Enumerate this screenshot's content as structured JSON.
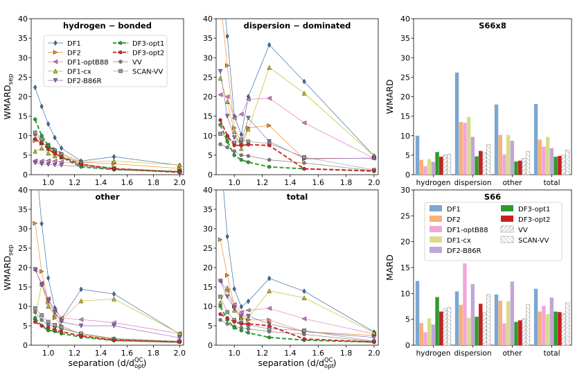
{
  "line_series": [
    {
      "name": "DF1",
      "color": "#3a6fa5",
      "marker": "diamond",
      "dash": "solid",
      "lw": 0.7
    },
    {
      "name": "DF2",
      "color": "#f28c28",
      "marker": "tri-right",
      "dash": "solid",
      "lw": 0.7
    },
    {
      "name": "DF1-optB88",
      "color": "#e377c2",
      "marker": "tri-left",
      "dash": "solid",
      "lw": 0.7
    },
    {
      "name": "DF1-cx",
      "color": "#bcbd22",
      "marker": "tri-up",
      "dash": "solid",
      "lw": 0.7
    },
    {
      "name": "DF2-B86R",
      "color": "#9467bd",
      "marker": "tri-down",
      "dash": "solid",
      "lw": 0.7
    },
    {
      "name": "DF3-opt1",
      "color": "#2ca02c",
      "marker": "circle",
      "dash": "dash",
      "lw": 2.0
    },
    {
      "name": "DF3-opt2",
      "color": "#d62728",
      "marker": "circle",
      "dash": "dash",
      "lw": 2.0
    },
    {
      "name": "VV",
      "color": "#7f7f7f",
      "marker": "circle",
      "dash": "solid",
      "lw": 0.7
    },
    {
      "name": "SCAN-VV",
      "color": "#9a9a9a",
      "marker": "square",
      "dash": "solid",
      "lw": 0.7
    }
  ],
  "bar_series": [
    {
      "name": "DF1",
      "color": "#7ba7d0",
      "hatch": false
    },
    {
      "name": "DF2",
      "color": "#f7b07a",
      "hatch": false
    },
    {
      "name": "DF1-optB88",
      "color": "#f2a6d8",
      "hatch": false
    },
    {
      "name": "DF1-cx",
      "color": "#d8dc8a",
      "hatch": false
    },
    {
      "name": "DF2-B86R",
      "color": "#c2a6d6",
      "hatch": false
    },
    {
      "name": "DF3-opt1",
      "color": "#2e9a2e",
      "hatch": false
    },
    {
      "name": "DF3-opt2",
      "color": "#c82020",
      "hatch": false
    },
    {
      "name": "VV",
      "color": "#ffffff",
      "hatch": true
    },
    {
      "name": "SCAN-VV",
      "color": "#ffffff",
      "hatch": true
    }
  ],
  "chart_data": [
    {
      "type": "line",
      "title": "hydrogen − bonded",
      "ylabel": "WMARD",
      "ylabel_sub": "sep",
      "xlabel": "",
      "ylim": [
        0,
        40
      ],
      "xlim": [
        0.87,
        2.03
      ],
      "xticks": [
        "1.0",
        "1.2",
        "1.4",
        "1.6",
        "1.8",
        "2.0"
      ],
      "xtick_values": [
        1.0,
        1.2,
        1.4,
        1.6,
        1.8,
        2.0
      ],
      "yticks": [
        "0",
        "5",
        "10",
        "15",
        "20",
        "25",
        "30",
        "35",
        "40"
      ],
      "ytick_values": [
        0,
        5,
        10,
        15,
        20,
        25,
        30,
        35,
        40
      ],
      "x": [
        0.9,
        0.95,
        1.0,
        1.05,
        1.1,
        1.25,
        1.5,
        2.0
      ],
      "values": [
        [
          22.4,
          17.5,
          13.0,
          9.5,
          6.8,
          3.5,
          4.6,
          2.4
        ],
        [
          8.7,
          8.0,
          7.5,
          6.5,
          5.5,
          3.2,
          2.8,
          1.6
        ],
        [
          3.6,
          3.5,
          3.6,
          3.5,
          3.3,
          2.6,
          1.5,
          0.8
        ],
        [
          6.0,
          6.8,
          5.5,
          4.8,
          4.5,
          3.3,
          3.5,
          2.5
        ],
        [
          3.0,
          2.7,
          2.6,
          2.5,
          2.4,
          2.1,
          1.4,
          0.8
        ],
        [
          14.2,
          10.0,
          7.5,
          5.8,
          4.5,
          2.0,
          1.3,
          0.8
        ],
        [
          9.2,
          8.0,
          6.5,
          5.4,
          4.6,
          2.6,
          1.5,
          0.6
        ],
        [
          10.3,
          8.5,
          6.7,
          5.5,
          4.5,
          2.5,
          1.3,
          0.6
        ],
        [
          10.8,
          9.2,
          7.6,
          6.2,
          5.2,
          2.8,
          1.7,
          0.8
        ]
      ],
      "legend": true
    },
    {
      "type": "line",
      "title": "dispersion − dominated",
      "ylabel": "",
      "xlabel": "",
      "ylim": [
        0,
        40
      ],
      "xlim": [
        0.87,
        2.03
      ],
      "xticks": [
        "1.0",
        "1.2",
        "1.4",
        "1.6",
        "1.8",
        "2.0"
      ],
      "xtick_values": [
        1.0,
        1.2,
        1.4,
        1.6,
        1.8,
        2.0
      ],
      "yticks": [
        "0",
        "5",
        "10",
        "15",
        "20",
        "25",
        "30",
        "35",
        "40"
      ],
      "ytick_values": [
        0,
        5,
        10,
        15,
        20,
        25,
        30,
        35,
        40
      ],
      "x": [
        0.9,
        0.95,
        1.0,
        1.05,
        1.1,
        1.25,
        1.5,
        2.0
      ],
      "values": [
        [
          55,
          35.5,
          15.0,
          10.3,
          20.0,
          33.3,
          23.9,
          4.8
        ],
        [
          45,
          28.0,
          12.0,
          8.0,
          12.0,
          12.6,
          4.0,
          4.3
        ],
        [
          20.5,
          20.0,
          14.5,
          15.5,
          19.3,
          19.6,
          13.3,
          4.2
        ],
        [
          24.7,
          18.7,
          11.0,
          6.7,
          11.7,
          27.5,
          20.9,
          4.8
        ],
        [
          26.5,
          15.0,
          9.5,
          8.3,
          14.5,
          8.5,
          4.2,
          4.2
        ],
        [
          12.8,
          8.5,
          5.0,
          3.8,
          3.2,
          2.0,
          1.5,
          0.9
        ],
        [
          14.0,
          10.0,
          7.5,
          7.5,
          7.7,
          7.5,
          1.5,
          1.0
        ],
        [
          7.8,
          7.0,
          6.0,
          5.0,
          4.8,
          3.8,
          3.0,
          1.0
        ],
        [
          10.5,
          9.5,
          8.2,
          9.0,
          8.5,
          8.0,
          4.5,
          1.2
        ]
      ],
      "legend": false
    },
    {
      "type": "line",
      "title": "other",
      "ylabel": "WMARD",
      "ylabel_sub": "sep",
      "xlabel": "separation (d/d",
      "ylim": [
        0,
        40
      ],
      "xlim": [
        0.87,
        2.03
      ],
      "xticks": [
        "1.0",
        "1.2",
        "1.4",
        "1.6",
        "1.8",
        "2.0"
      ],
      "xtick_values": [
        1.0,
        1.2,
        1.4,
        1.6,
        1.8,
        2.0
      ],
      "yticks": [
        "0",
        "5",
        "10",
        "15",
        "20",
        "25",
        "30",
        "35",
        "40"
      ],
      "ytick_values": [
        0,
        5,
        10,
        15,
        20,
        25,
        30,
        35,
        40
      ],
      "x": [
        0.9,
        0.95,
        1.0,
        1.05,
        1.1,
        1.25,
        1.5,
        2.0
      ],
      "values": [
        [
          50,
          31.3,
          17.3,
          9.6,
          6.7,
          14.4,
          13.2,
          2.9
        ],
        [
          31.4,
          19.0,
          11.0,
          7.0,
          5.0,
          2.8,
          1.5,
          1.0
        ],
        [
          19.3,
          16.0,
          12.0,
          9.0,
          7.0,
          6.6,
          5.8,
          3.0
        ],
        [
          7.0,
          15.8,
          10.0,
          8.0,
          6.5,
          11.4,
          11.9,
          3.0
        ],
        [
          19.5,
          15.5,
          11.5,
          8.5,
          6.0,
          5.0,
          5.0,
          1.9
        ],
        [
          7.0,
          5.0,
          3.8,
          3.6,
          3.0,
          2.1,
          1.2,
          0.8
        ],
        [
          6.0,
          5.0,
          4.5,
          4.0,
          3.5,
          2.4,
          1.3,
          0.8
        ],
        [
          8.5,
          6.5,
          5.2,
          4.8,
          4.2,
          3.0,
          1.7,
          1.0
        ],
        [
          9.5,
          7.7,
          6.0,
          5.2,
          4.6,
          3.0,
          1.6,
          1.0
        ]
      ],
      "legend": false
    },
    {
      "type": "line",
      "title": "total",
      "ylabel": "",
      "xlabel": "separation (d/d",
      "ylim": [
        0,
        40
      ],
      "xlim": [
        0.87,
        2.03
      ],
      "xticks": [
        "1.0",
        "1.2",
        "1.4",
        "1.6",
        "1.8",
        "2.0"
      ],
      "xtick_values": [
        1.0,
        1.2,
        1.4,
        1.6,
        1.8,
        2.0
      ],
      "yticks": [
        "0",
        "5",
        "10",
        "15",
        "20",
        "25",
        "30",
        "35",
        "40"
      ],
      "ytick_values": [
        0,
        5,
        10,
        15,
        20,
        25,
        30,
        35,
        40
      ],
      "x": [
        0.9,
        0.95,
        1.0,
        1.05,
        1.1,
        1.25,
        1.5,
        2.0
      ],
      "values": [
        [
          50,
          28.0,
          14.5,
          9.9,
          11.3,
          17.2,
          13.9,
          3.4
        ],
        [
          27.2,
          18.0,
          10.0,
          7.0,
          6.5,
          6.5,
          3.5,
          2.5
        ],
        [
          16.5,
          14.0,
          10.5,
          8.5,
          9.0,
          9.5,
          6.8,
          2.9
        ],
        [
          11.0,
          14.8,
          9.0,
          7.0,
          7.0,
          14.0,
          12.2,
          3.2
        ],
        [
          16.5,
          12.5,
          9.5,
          7.5,
          7.5,
          5.5,
          3.5,
          2.0
        ],
        [
          10.0,
          6.5,
          4.5,
          3.8,
          3.2,
          2.0,
          1.3,
          0.8
        ],
        [
          8.0,
          7.0,
          6.0,
          5.5,
          5.5,
          5.0,
          1.6,
          0.8
        ],
        [
          6.5,
          5.5,
          4.8,
          4.5,
          4.2,
          3.5,
          2.8,
          0.9
        ],
        [
          12.5,
          8.5,
          6.5,
          5.8,
          5.2,
          4.2,
          3.8,
          1.0
        ]
      ],
      "legend": false
    },
    {
      "type": "bar",
      "title": "S66x8",
      "ylabel": "WMARD",
      "ylim": [
        0,
        40
      ],
      "yticks": [
        "0",
        "5",
        "10",
        "15",
        "20",
        "25",
        "30",
        "35",
        "40"
      ],
      "ytick_values": [
        0,
        5,
        10,
        15,
        20,
        25,
        30,
        35,
        40
      ],
      "categories": [
        "hydrogen",
        "dispersion",
        "other",
        "total"
      ],
      "values": [
        [
          10.0,
          3.8,
          2.2,
          4.0,
          3.3,
          5.8,
          4.6,
          5.0,
          5.2
        ],
        [
          26.2,
          13.5,
          13.3,
          14.8,
          9.7,
          4.7,
          6.1,
          5.7,
          7.8
        ],
        [
          18.0,
          10.2,
          5.2,
          10.2,
          8.7,
          3.4,
          3.6,
          4.2,
          6.0
        ],
        [
          18.1,
          9.0,
          7.2,
          9.7,
          6.8,
          4.6,
          4.8,
          5.0,
          6.3
        ]
      ],
      "legend": false
    },
    {
      "type": "bar",
      "title": "S66",
      "ylabel": "MARD",
      "ylim": [
        0,
        30
      ],
      "yticks": [
        "0",
        "5",
        "10",
        "15",
        "20",
        "25",
        "30"
      ],
      "ytick_values": [
        0,
        5,
        10,
        15,
        20,
        25,
        30
      ],
      "categories": [
        "hydrogen",
        "dispersion",
        "other",
        "total"
      ],
      "values": [
        [
          12.4,
          4.3,
          2.5,
          5.2,
          4.0,
          9.3,
          6.5,
          7.0,
          7.3
        ],
        [
          10.4,
          7.8,
          15.8,
          5.3,
          11.8,
          5.5,
          8.0,
          6.3,
          9.8
        ],
        [
          9.8,
          8.6,
          4.2,
          8.5,
          12.3,
          4.5,
          4.8,
          5.1,
          7.8
        ],
        [
          10.9,
          6.5,
          7.6,
          6.0,
          9.2,
          6.5,
          6.4,
          6.1,
          8.2
        ]
      ],
      "legend": true
    }
  ],
  "xlabel_sup": "QC",
  "xlabel_sub": "opt",
  "xlabel_end": ")"
}
